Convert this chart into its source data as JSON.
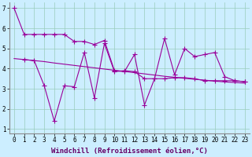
{
  "line1_x": [
    0,
    1,
    2,
    3,
    4,
    5,
    6,
    7,
    8,
    9,
    10,
    11,
    12,
    13,
    14,
    15,
    16,
    17,
    18,
    19,
    20,
    21,
    22,
    23
  ],
  "line1_y": [
    7.0,
    5.7,
    5.7,
    5.7,
    5.7,
    5.7,
    5.35,
    5.35,
    5.2,
    5.4,
    3.9,
    3.85,
    4.7,
    2.2,
    3.5,
    5.5,
    3.7,
    5.0,
    4.6,
    4.7,
    4.8,
    3.6,
    3.4,
    3.35
  ],
  "line2_x": [
    1,
    2,
    3,
    4,
    5,
    6,
    7,
    8,
    9,
    10,
    11,
    12,
    13,
    14,
    15,
    16,
    17,
    18,
    19,
    20,
    21,
    22,
    23
  ],
  "line2_y": [
    4.45,
    4.4,
    3.15,
    1.4,
    3.15,
    3.1,
    4.8,
    2.55,
    5.25,
    3.85,
    3.9,
    3.85,
    3.5,
    3.5,
    3.5,
    3.55,
    3.55,
    3.5,
    3.4,
    3.4,
    3.4,
    3.4,
    3.35
  ],
  "line3_x": [
    0,
    1,
    2,
    3,
    4,
    5,
    6,
    7,
    8,
    9,
    10,
    11,
    12,
    13,
    14,
    15,
    16,
    17,
    18,
    19,
    20,
    21,
    22,
    23
  ],
  "line3_y": [
    4.5,
    4.45,
    4.4,
    4.35,
    4.28,
    4.22,
    4.16,
    4.1,
    4.04,
    3.98,
    3.92,
    3.86,
    3.8,
    3.74,
    3.68,
    3.62,
    3.57,
    3.52,
    3.47,
    3.43,
    3.38,
    3.34,
    3.31,
    3.28
  ],
  "color": "#990099",
  "bg_color": "#cceeff",
  "grid_color": "#99ccbb",
  "xlabel": "Windchill (Refroidissement éolien,°C)",
  "xlim": [
    -0.5,
    23.5
  ],
  "ylim": [
    0.8,
    7.3
  ],
  "xticks": [
    0,
    1,
    2,
    3,
    4,
    5,
    6,
    7,
    8,
    9,
    10,
    11,
    12,
    13,
    14,
    15,
    16,
    17,
    18,
    19,
    20,
    21,
    22,
    23
  ],
  "yticks": [
    1,
    2,
    3,
    4,
    5,
    6,
    7
  ],
  "marker": "+",
  "markersize": 4,
  "linewidth": 0.8,
  "xlabel_fontsize": 6.5,
  "tick_fontsize": 5.5
}
